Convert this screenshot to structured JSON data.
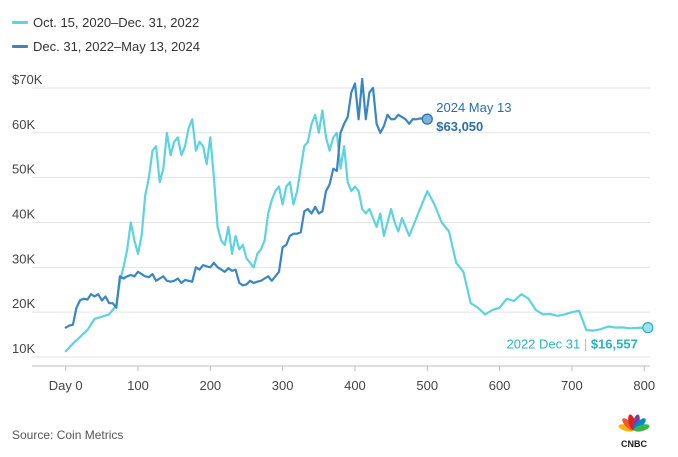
{
  "source": "Source: Coin Metrics",
  "logo": {
    "text": "CNBC",
    "icon": "cnbc-peacock-icon",
    "petal_colors": [
      "#f6b40e",
      "#ee5a24",
      "#e0201b",
      "#7e3f98",
      "#0089cf",
      "#3ab54a"
    ]
  },
  "chart_data": {
    "type": "line",
    "xlim": [
      -30,
      808
    ],
    "ylim": [
      8000,
      74000
    ],
    "x_ticks": [
      {
        "value": 0,
        "label": "Day 0"
      },
      {
        "value": 100,
        "label": "100"
      },
      {
        "value": 200,
        "label": "200"
      },
      {
        "value": 300,
        "label": "300"
      },
      {
        "value": 400,
        "label": "400"
      },
      {
        "value": 500,
        "label": "500"
      },
      {
        "value": 600,
        "label": "600"
      },
      {
        "value": 700,
        "label": "700"
      },
      {
        "value": 800,
        "label": "800"
      }
    ],
    "y_ticks": [
      {
        "value": 10000,
        "label": "10K"
      },
      {
        "value": 20000,
        "label": "20K"
      },
      {
        "value": 30000,
        "label": "30K"
      },
      {
        "value": 40000,
        "label": "40K"
      },
      {
        "value": 50000,
        "label": "50K"
      },
      {
        "value": 60000,
        "label": "60K"
      },
      {
        "value": 70000,
        "label": "$70K"
      }
    ],
    "grid": true,
    "series": [
      {
        "name": "Oct. 15, 2020–Dec. 31, 2022",
        "color": "#5ed3e0",
        "x": [
          0,
          10,
          20,
          30,
          40,
          50,
          60,
          70,
          75,
          80,
          85,
          90,
          95,
          100,
          105,
          110,
          115,
          120,
          125,
          130,
          135,
          140,
          145,
          150,
          155,
          160,
          165,
          170,
          175,
          180,
          185,
          190,
          195,
          200,
          205,
          210,
          215,
          220,
          225,
          230,
          235,
          240,
          245,
          250,
          255,
          260,
          265,
          270,
          275,
          280,
          285,
          290,
          295,
          300,
          305,
          310,
          315,
          320,
          325,
          330,
          335,
          340,
          345,
          350,
          355,
          360,
          365,
          370,
          375,
          380,
          385,
          390,
          395,
          400,
          405,
          410,
          415,
          420,
          425,
          430,
          435,
          440,
          445,
          450,
          455,
          460,
          465,
          470,
          475,
          480,
          490,
          500,
          510,
          520,
          530,
          540,
          550,
          560,
          570,
          580,
          590,
          600,
          610,
          620,
          630,
          640,
          650,
          660,
          670,
          680,
          690,
          700,
          710,
          720,
          730,
          740,
          750,
          760,
          770,
          780,
          790,
          805
        ],
        "y": [
          11300,
          13000,
          14500,
          16000,
          18500,
          19000,
          19500,
          21500,
          27000,
          30000,
          34000,
          40000,
          36000,
          33000,
          37000,
          46000,
          50000,
          56000,
          57000,
          49000,
          52000,
          60000,
          55000,
          58000,
          59000,
          55000,
          57000,
          61000,
          63000,
          56000,
          58000,
          57000,
          53000,
          59000,
          50000,
          39000,
          36000,
          35000,
          39000,
          33000,
          37000,
          34000,
          35000,
          32000,
          31000,
          30000,
          33000,
          34000,
          36000,
          42000,
          45000,
          47000,
          48000,
          44000,
          48000,
          49000,
          44000,
          47000,
          52000,
          57000,
          58000,
          62000,
          64000,
          60000,
          65000,
          59000,
          56000,
          59000,
          60000,
          52000,
          57000,
          49000,
          47000,
          48000,
          47000,
          43000,
          42000,
          43000,
          41000,
          39000,
          42000,
          37000,
          40000,
          43000,
          40000,
          38000,
          41000,
          39000,
          37000,
          39000,
          43000,
          47000,
          44000,
          40000,
          38000,
          31000,
          29000,
          22000,
          21000,
          19500,
          20500,
          21000,
          23000,
          22500,
          24000,
          23000,
          20500,
          19500,
          19600,
          19200,
          19500,
          20000,
          20300,
          16000,
          15900,
          16200,
          16800,
          16557,
          16600,
          16400,
          16500,
          16557
        ]
      },
      {
        "name": "Dec. 31, 2022–May 13, 2024",
        "color": "#3a86c3",
        "x": [
          0,
          5,
          10,
          15,
          20,
          25,
          30,
          35,
          40,
          45,
          50,
          55,
          60,
          65,
          70,
          75,
          80,
          85,
          90,
          95,
          100,
          105,
          110,
          115,
          120,
          125,
          130,
          135,
          140,
          145,
          150,
          155,
          160,
          165,
          170,
          175,
          180,
          185,
          190,
          195,
          200,
          205,
          210,
          215,
          220,
          225,
          230,
          235,
          240,
          245,
          250,
          255,
          260,
          265,
          270,
          275,
          280,
          285,
          290,
          295,
          300,
          305,
          310,
          315,
          320,
          325,
          330,
          335,
          340,
          345,
          350,
          355,
          360,
          365,
          370,
          375,
          380,
          385,
          390,
          395,
          400,
          405,
          410,
          415,
          420,
          425,
          430,
          435,
          440,
          445,
          450,
          455,
          460,
          465,
          470,
          475,
          480,
          485,
          490,
          495,
          500
        ],
        "y": [
          16557,
          17000,
          17200,
          21000,
          22700,
          23000,
          22800,
          24000,
          23500,
          24000,
          22600,
          23500,
          22000,
          22000,
          21000,
          28000,
          27500,
          28000,
          28300,
          28000,
          29000,
          28500,
          28000,
          27800,
          28500,
          27000,
          27500,
          28000,
          27000,
          26800,
          27000,
          27500,
          26500,
          27200,
          27000,
          26800,
          30000,
          29500,
          30500,
          30200,
          30000,
          31000,
          30000,
          29500,
          29000,
          29800,
          29200,
          29500,
          26500,
          26000,
          26200,
          27000,
          26500,
          26800,
          27000,
          27500,
          28000,
          27000,
          28000,
          29000,
          34500,
          35000,
          37000,
          37500,
          37500,
          37800,
          42500,
          43000,
          42000,
          43500,
          42000,
          42500,
          47000,
          48500,
          52000,
          51500,
          60000,
          62000,
          63500,
          69000,
          71000,
          63000,
          72000,
          63000,
          69000,
          70000,
          62000,
          60000,
          61500,
          64000,
          63000,
          63050,
          64000,
          63500,
          63000,
          62000,
          63050,
          63000,
          63200,
          63100,
          63050
        ]
      }
    ],
    "annotations": [
      {
        "name": "end-2024",
        "x": 500,
        "y": 63050,
        "line1": "2024 May 13",
        "line2": "$63,050",
        "color": "#2a6fa8"
      },
      {
        "name": "end-2022",
        "x": 805,
        "y": 16557,
        "line1": "2022 Dec 31",
        "sep": "|",
        "line2": "$16,557",
        "color": "#2ab3c3"
      }
    ]
  }
}
